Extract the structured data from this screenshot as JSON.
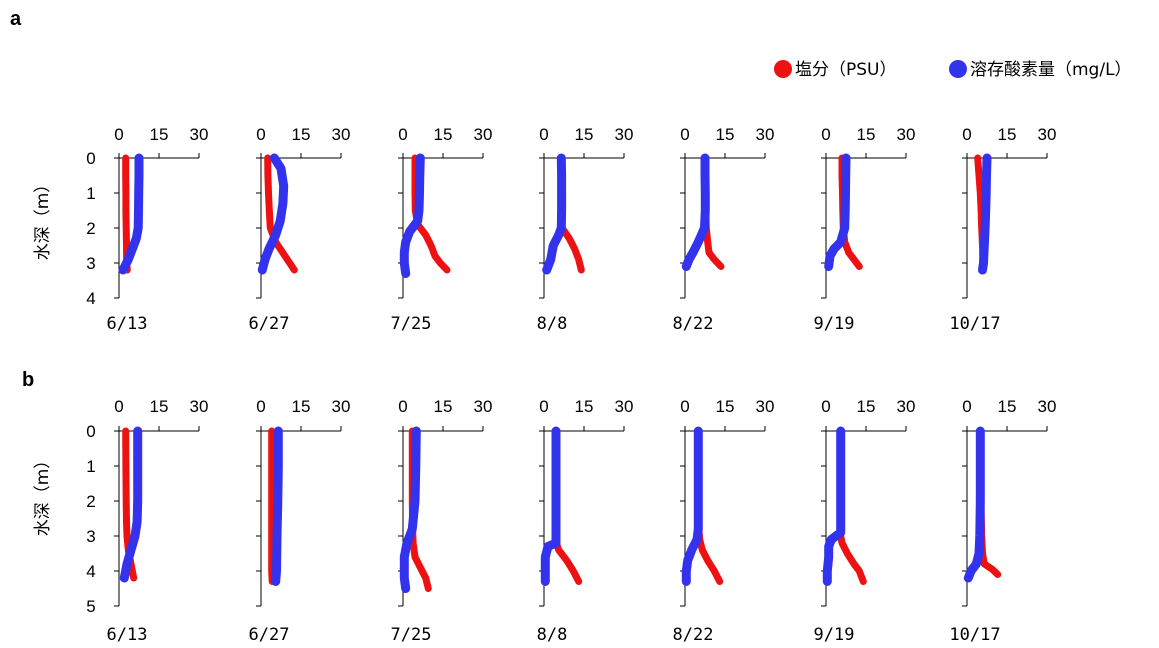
{
  "legend": {
    "salinity": {
      "label": "塩分（PSU）",
      "color": "#ee1111"
    },
    "oxygen": {
      "label": "溶存酸素量（mg/L）",
      "color": "#3333ee"
    }
  },
  "chart_data": [
    {
      "panel": "a",
      "type": "line",
      "ylabel": "水深（m）",
      "xticks": [
        "0",
        "15",
        "30"
      ],
      "yticks": [
        "0",
        "1",
        "2",
        "3",
        "4"
      ],
      "xlim": [
        0,
        30
      ],
      "ylim": [
        0,
        4
      ],
      "y_inverted": true,
      "subplots": [
        {
          "date": "6/13",
          "series": [
            {
              "key": "salinity",
              "x": [
                2.5,
                2.5,
                2.6,
                2.6,
                2.7,
                2.8,
                2.9,
                3.1
              ],
              "y": [
                0,
                0.5,
                1.0,
                1.5,
                2.0,
                2.5,
                3.0,
                3.2
              ]
            },
            {
              "key": "oxygen",
              "x": [
                7.5,
                7.5,
                7.4,
                7.3,
                7.2,
                6.5,
                5.0,
                3.5,
                1.5
              ],
              "y": [
                0,
                0.5,
                1.0,
                1.5,
                2.0,
                2.3,
                2.6,
                2.9,
                3.2
              ]
            }
          ]
        },
        {
          "date": "6/27",
          "series": [
            {
              "key": "salinity",
              "x": [
                2.5,
                2.6,
                2.8,
                3.1,
                3.5,
                5.5,
                9.0,
                12.5
              ],
              "y": [
                0,
                0.5,
                1.0,
                1.5,
                2.0,
                2.4,
                2.8,
                3.2
              ]
            },
            {
              "key": "oxygen",
              "x": [
                5.0,
                7.5,
                8.5,
                8.2,
                7.2,
                5.5,
                3.0,
                1.5,
                0.5
              ],
              "y": [
                0,
                0.3,
                0.8,
                1.3,
                1.8,
                2.2,
                2.6,
                2.9,
                3.2
              ]
            }
          ]
        },
        {
          "date": "7/25",
          "series": [
            {
              "key": "salinity",
              "x": [
                4.5,
                4.5,
                4.5,
                4.6,
                5.5,
                8.5,
                10.5,
                12.0,
                14.0,
                16.5
              ],
              "y": [
                0,
                0.5,
                1.0,
                1.5,
                1.9,
                2.2,
                2.5,
                2.8,
                3.0,
                3.2
              ]
            },
            {
              "key": "oxygen",
              "x": [
                6.5,
                6.3,
                6.2,
                6.0,
                5.5,
                2.5,
                1.0,
                0.5,
                0.5,
                1.0
              ],
              "y": [
                0,
                0.5,
                1.0,
                1.5,
                1.8,
                2.1,
                2.4,
                2.7,
                3.0,
                3.3
              ]
            }
          ]
        },
        {
          "date": "8/8",
          "series": [
            {
              "key": "salinity",
              "x": [
                6.5,
                6.5,
                6.5,
                6.6,
                6.8,
                9.5,
                11.5,
                13.0,
                14.0
              ],
              "y": [
                0,
                0.5,
                1.0,
                1.5,
                2.0,
                2.3,
                2.6,
                2.9,
                3.2
              ]
            },
            {
              "key": "oxygen",
              "x": [
                6.5,
                6.6,
                6.6,
                6.6,
                6.5,
                5.5,
                3.5,
                2.5,
                1.0
              ],
              "y": [
                0,
                0.5,
                1.0,
                1.5,
                2.0,
                2.2,
                2.5,
                2.9,
                3.2
              ]
            }
          ]
        },
        {
          "date": "8/22",
          "series": [
            {
              "key": "salinity",
              "x": [
                7.5,
                7.6,
                7.7,
                7.8,
                8.0,
                8.5,
                9.0,
                11.0,
                13.5
              ],
              "y": [
                0,
                0.5,
                1.0,
                1.5,
                2.0,
                2.4,
                2.7,
                2.9,
                3.1
              ]
            },
            {
              "key": "oxygen",
              "x": [
                7.5,
                7.5,
                7.6,
                7.6,
                7.3,
                5.0,
                3.0,
                1.5,
                0.5
              ],
              "y": [
                0,
                0.5,
                1.0,
                1.5,
                2.0,
                2.4,
                2.7,
                2.9,
                3.1
              ]
            }
          ]
        },
        {
          "date": "9/19",
          "series": [
            {
              "key": "salinity",
              "x": [
                6.0,
                6.0,
                6.2,
                6.3,
                6.5,
                7.0,
                8.5,
                10.5,
                12.5
              ],
              "y": [
                0,
                0.5,
                1.0,
                1.5,
                2.0,
                2.4,
                2.7,
                2.9,
                3.1
              ]
            },
            {
              "key": "oxygen",
              "x": [
                7.5,
                7.4,
                7.3,
                7.2,
                7.0,
                5.5,
                3.0,
                1.5,
                1.0
              ],
              "y": [
                0,
                0.5,
                1.0,
                1.5,
                2.0,
                2.4,
                2.6,
                2.8,
                3.1
              ]
            }
          ]
        },
        {
          "date": "10/17",
          "series": [
            {
              "key": "salinity",
              "x": [
                4.0,
                4.5,
                5.0,
                5.3,
                5.5,
                5.8,
                6.0,
                6.2
              ],
              "y": [
                0,
                0.5,
                1.0,
                1.5,
                2.0,
                2.5,
                3.0,
                3.2
              ]
            },
            {
              "key": "oxygen",
              "x": [
                7.5,
                7.3,
                7.2,
                7.0,
                6.8,
                6.5,
                6.2,
                5.8
              ],
              "y": [
                0,
                0.5,
                1.0,
                1.5,
                2.0,
                2.5,
                3.0,
                3.2
              ]
            }
          ]
        }
      ]
    },
    {
      "panel": "b",
      "type": "line",
      "ylabel": "水深（m）",
      "xticks": [
        "0",
        "15",
        "30"
      ],
      "yticks": [
        "0",
        "1",
        "2",
        "3",
        "4",
        "5"
      ],
      "xlim": [
        0,
        30
      ],
      "ylim": [
        0,
        5
      ],
      "y_inverted": true,
      "subplots": [
        {
          "date": "6/13",
          "series": [
            {
              "key": "salinity",
              "x": [
                2.5,
                2.6,
                2.7,
                2.8,
                3.0,
                3.5,
                4.5,
                5.5
              ],
              "y": [
                0,
                1.0,
                2.0,
                2.6,
                3.0,
                3.4,
                3.8,
                4.2
              ]
            },
            {
              "key": "oxygen",
              "x": [
                7.0,
                7.0,
                7.0,
                6.8,
                6.0,
                4.5,
                3.0,
                2.0
              ],
              "y": [
                0,
                1.0,
                2.0,
                2.6,
                3.0,
                3.4,
                3.8,
                4.2
              ]
            }
          ]
        },
        {
          "date": "6/27",
          "series": [
            {
              "key": "salinity",
              "x": [
                4.0,
                4.0,
                4.0,
                4.0,
                4.0,
                4.2
              ],
              "y": [
                0,
                1.0,
                2.0,
                3.0,
                4.0,
                4.3
              ]
            },
            {
              "key": "oxygen",
              "x": [
                6.5,
                6.5,
                6.3,
                6.0,
                5.8,
                5.5
              ],
              "y": [
                0,
                1.0,
                2.0,
                3.0,
                4.0,
                4.3
              ]
            }
          ]
        },
        {
          "date": "7/25",
          "series": [
            {
              "key": "salinity",
              "x": [
                3.5,
                3.5,
                3.5,
                3.6,
                3.8,
                4.5,
                6.5,
                8.5,
                9.5
              ],
              "y": [
                0,
                1.0,
                2.0,
                2.8,
                3.2,
                3.6,
                3.9,
                4.2,
                4.5
              ]
            },
            {
              "key": "oxygen",
              "x": [
                5.0,
                4.8,
                4.5,
                3.5,
                1.5,
                0.5,
                0.5,
                0.5,
                1.0
              ],
              "y": [
                0,
                1.0,
                2.0,
                2.8,
                3.2,
                3.6,
                3.9,
                4.2,
                4.5
              ]
            }
          ]
        },
        {
          "date": "8/8",
          "series": [
            {
              "key": "salinity",
              "x": [
                4.5,
                4.5,
                4.5,
                4.5,
                4.6,
                5.5,
                8.5,
                11.0,
                13.0
              ],
              "y": [
                0,
                1.0,
                2.0,
                3.0,
                3.2,
                3.4,
                3.7,
                4.0,
                4.3
              ]
            },
            {
              "key": "oxygen",
              "x": [
                4.5,
                4.5,
                4.5,
                4.5,
                4.5,
                1.5,
                0.5,
                0.5,
                0.5
              ],
              "y": [
                0,
                1.0,
                2.0,
                3.0,
                3.2,
                3.3,
                3.6,
                4.0,
                4.3
              ]
            }
          ]
        },
        {
          "date": "8/22",
          "series": [
            {
              "key": "salinity",
              "x": [
                5.0,
                5.0,
                5.0,
                5.2,
                5.5,
                6.5,
                8.5,
                11.0,
                13.0
              ],
              "y": [
                0,
                1.0,
                2.0,
                2.8,
                3.1,
                3.4,
                3.7,
                4.0,
                4.3
              ]
            },
            {
              "key": "oxygen",
              "x": [
                5.0,
                5.0,
                5.0,
                5.0,
                4.5,
                2.5,
                1.0,
                0.5,
                0.5
              ],
              "y": [
                0,
                1.0,
                2.0,
                2.8,
                3.1,
                3.4,
                3.7,
                4.0,
                4.3
              ]
            }
          ]
        },
        {
          "date": "9/19",
          "series": [
            {
              "key": "salinity",
              "x": [
                5.5,
                5.5,
                5.5,
                5.5,
                6.0,
                8.0,
                10.5,
                12.5,
                14.0
              ],
              "y": [
                0,
                1.0,
                2.0,
                3.0,
                3.2,
                3.5,
                3.8,
                4.0,
                4.3
              ]
            },
            {
              "key": "oxygen",
              "x": [
                5.5,
                5.5,
                5.5,
                5.5,
                2.0,
                1.0,
                1.0,
                0.5,
                0.5
              ],
              "y": [
                0,
                1.0,
                2.0,
                2.9,
                3.1,
                3.3,
                3.6,
                4.0,
                4.3
              ]
            }
          ]
        },
        {
          "date": "10/17",
          "series": [
            {
              "key": "salinity",
              "x": [
                5.0,
                5.0,
                5.2,
                5.5,
                5.8,
                6.5,
                9.5,
                11.5
              ],
              "y": [
                0,
                1.0,
                2.0,
                3.0,
                3.5,
                3.8,
                3.95,
                4.1
              ]
            },
            {
              "key": "oxygen",
              "x": [
                5.0,
                5.0,
                5.0,
                4.8,
                4.5,
                3.5,
                1.5,
                0.5
              ],
              "y": [
                0,
                1.0,
                2.0,
                3.0,
                3.5,
                3.8,
                4.0,
                4.2
              ]
            }
          ]
        }
      ]
    }
  ]
}
